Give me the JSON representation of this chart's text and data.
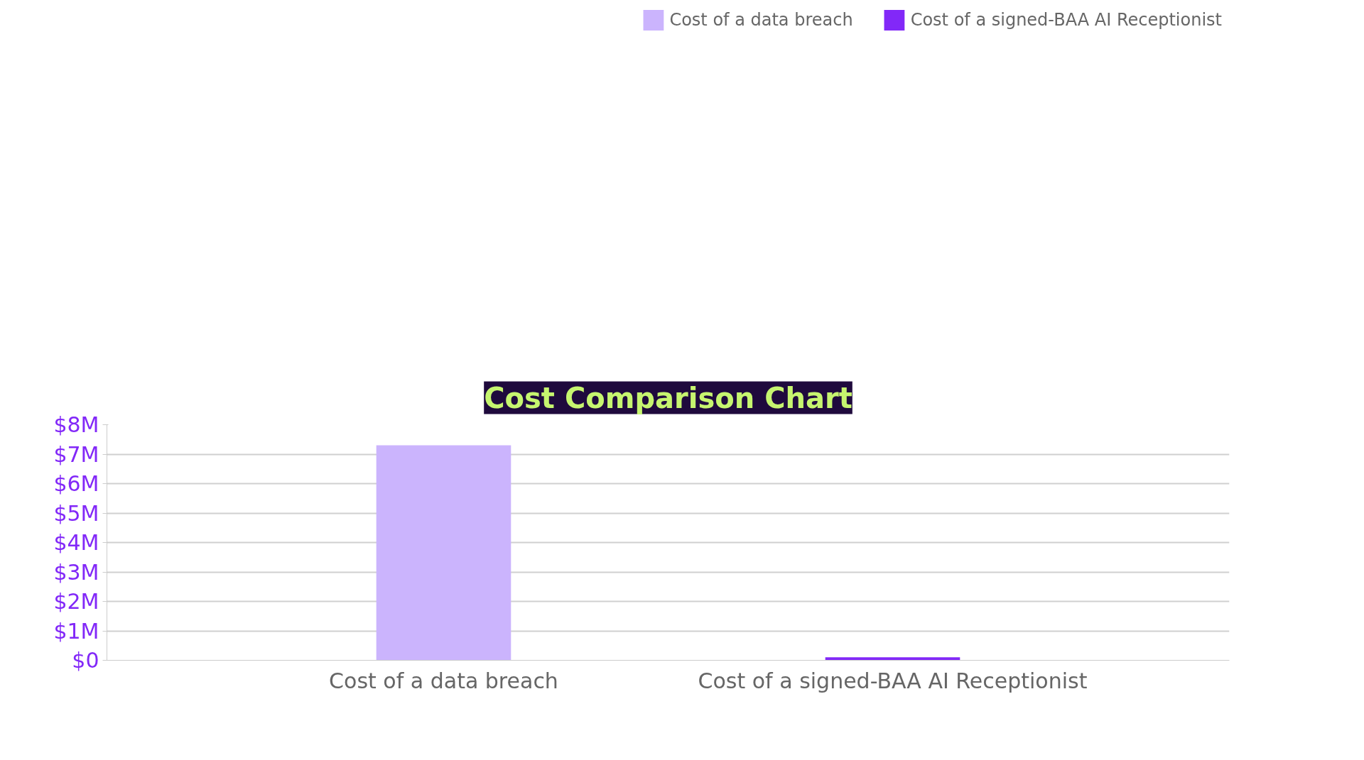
{
  "chart_data": {
    "type": "bar",
    "title": "Cost Comparison Chart",
    "categories": [
      "Cost of a data breach",
      "Cost of a signed-BAA AI Receptionist"
    ],
    "series": [
      {
        "name": "Cost of a data breach",
        "color": "#cbb4fd",
        "values": [
          7.3,
          null
        ]
      },
      {
        "name": "Cost of a signed-BAA AI Receptionist",
        "color": "#8228f8",
        "values": [
          null,
          0.1
        ]
      }
    ],
    "ylim": [
      0,
      8
    ],
    "yticks": [
      {
        "value": 0,
        "label": "$0"
      },
      {
        "value": 1,
        "label": "$1M"
      },
      {
        "value": 2,
        "label": "$2M"
      },
      {
        "value": 3,
        "label": "$3M"
      },
      {
        "value": 4,
        "label": "$4M"
      },
      {
        "value": 5,
        "label": "$5M"
      },
      {
        "value": 6,
        "label": "$6M"
      },
      {
        "value": 7,
        "label": "$7M"
      },
      {
        "value": 8,
        "label": "$8M"
      }
    ],
    "grid": "y",
    "legend": "top right"
  }
}
